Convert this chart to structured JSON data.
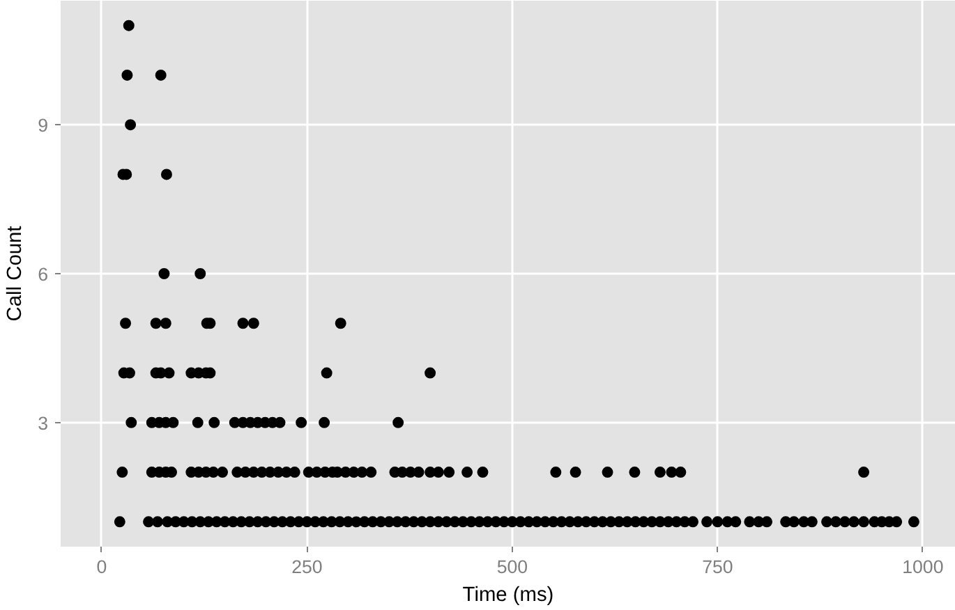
{
  "chart_data": {
    "type": "scatter",
    "xlabel": "Time (ms)",
    "ylabel": "Call Count",
    "xlim": [
      -50,
      1040
    ],
    "ylim": [
      0.5,
      11.5
    ],
    "xticks": [
      0,
      250,
      500,
      750,
      1000
    ],
    "yticks": [
      3,
      6,
      9
    ],
    "grid": true,
    "marker": "circle",
    "color": "#000000",
    "x": [
      22,
      57,
      68,
      80,
      90,
      100,
      110,
      120,
      130,
      140,
      150,
      160,
      170,
      180,
      190,
      200,
      210,
      220,
      230,
      240,
      250,
      260,
      270,
      280,
      290,
      300,
      310,
      320,
      330,
      340,
      350,
      360,
      370,
      380,
      390,
      400,
      410,
      420,
      430,
      440,
      450,
      460,
      470,
      480,
      490,
      500,
      510,
      520,
      530,
      540,
      550,
      560,
      570,
      580,
      590,
      600,
      610,
      620,
      630,
      640,
      650,
      660,
      670,
      680,
      690,
      700,
      710,
      720,
      737,
      750,
      762,
      772,
      789,
      800,
      810,
      833,
      843,
      855,
      865,
      883,
      894,
      905,
      916,
      928,
      941,
      950,
      959,
      968,
      989,
      25,
      61,
      70,
      78,
      85,
      109,
      118,
      127,
      136,
      147,
      165,
      175,
      185,
      195,
      205,
      215,
      225,
      235,
      252,
      262,
      272,
      281,
      287,
      297,
      307,
      317,
      328,
      357,
      366,
      376,
      386,
      400,
      410,
      423,
      445,
      464,
      553,
      577,
      616,
      649,
      680,
      694,
      705,
      928,
      36,
      61,
      70,
      78,
      87,
      117,
      137,
      162,
      172,
      181,
      190,
      199,
      208,
      217,
      243,
      271,
      361,
      27,
      34,
      66,
      72,
      82,
      109,
      118,
      127,
      132,
      274,
      400,
      29,
      66,
      78,
      128,
      132,
      172,
      185,
      291,
      76,
      120,
      26,
      30,
      79,
      35,
      31,
      72,
      33
    ],
    "values": [
      1,
      1,
      1,
      1,
      1,
      1,
      1,
      1,
      1,
      1,
      1,
      1,
      1,
      1,
      1,
      1,
      1,
      1,
      1,
      1,
      1,
      1,
      1,
      1,
      1,
      1,
      1,
      1,
      1,
      1,
      1,
      1,
      1,
      1,
      1,
      1,
      1,
      1,
      1,
      1,
      1,
      1,
      1,
      1,
      1,
      1,
      1,
      1,
      1,
      1,
      1,
      1,
      1,
      1,
      1,
      1,
      1,
      1,
      1,
      1,
      1,
      1,
      1,
      1,
      1,
      1,
      1,
      1,
      1,
      1,
      1,
      1,
      1,
      1,
      1,
      1,
      1,
      1,
      1,
      1,
      1,
      1,
      1,
      1,
      1,
      1,
      1,
      1,
      1,
      2,
      2,
      2,
      2,
      2,
      2,
      2,
      2,
      2,
      2,
      2,
      2,
      2,
      2,
      2,
      2,
      2,
      2,
      2,
      2,
      2,
      2,
      2,
      2,
      2,
      2,
      2,
      2,
      2,
      2,
      2,
      2,
      2,
      2,
      2,
      2,
      2,
      2,
      2,
      2,
      2,
      2,
      2,
      2,
      3,
      3,
      3,
      3,
      3,
      3,
      3,
      3,
      3,
      3,
      3,
      3,
      3,
      3,
      3,
      3,
      3,
      4,
      4,
      4,
      4,
      4,
      4,
      4,
      4,
      4,
      4,
      4,
      5,
      5,
      5,
      5,
      5,
      5,
      5,
      5,
      6,
      6,
      8,
      8,
      8,
      9,
      10,
      10,
      11
    ]
  }
}
